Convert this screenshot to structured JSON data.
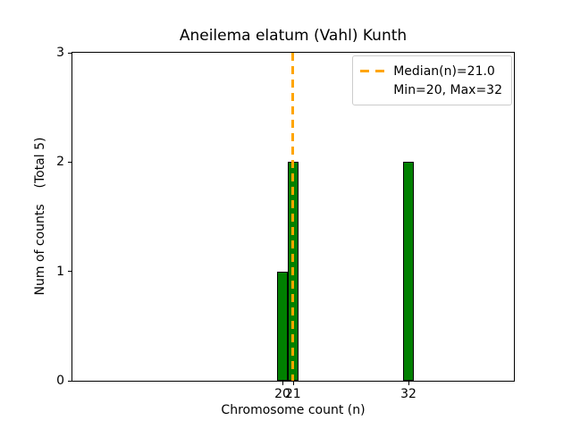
{
  "chart_data": {
    "type": "bar",
    "title": "Aneilema elatum (Vahl) Kunth",
    "xlabel": "Chromosome count (n)",
    "ylabel": "Num of counts    (Total 5)",
    "x": [
      20,
      21,
      32
    ],
    "values": [
      1,
      2,
      2
    ],
    "x_ticks": [
      20,
      21,
      32
    ],
    "y_ticks": [
      0,
      1,
      2,
      3
    ],
    "ylim": [
      0,
      3
    ],
    "median": 21.0,
    "min": 20,
    "max": 32,
    "total_counts": 5,
    "bar_color": "#008000",
    "bar_edge_color": "#000000",
    "median_line_color": "#ffa500",
    "legend": [
      "Median(n)=21.0",
      "Min=20, Max=32"
    ],
    "legend_position": "upper right",
    "grid": false
  }
}
